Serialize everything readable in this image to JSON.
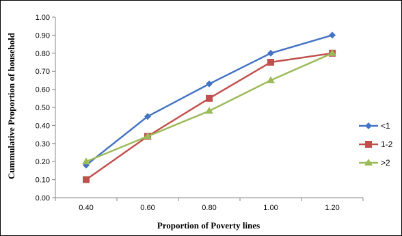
{
  "chart_data": {
    "type": "line",
    "title": "",
    "xlabel": "Proportion of Poverty lines",
    "ylabel": "Cummulative Proportion of household",
    "x": [
      0.4,
      0.6,
      0.8,
      1.0,
      1.2
    ],
    "x_tick_labels": [
      "0.40",
      "0.60",
      "0.80",
      "1.00",
      "1.20"
    ],
    "ylim": [
      0,
      1.0
    ],
    "y_tick_labels": [
      "0.00",
      "0.10",
      "0.20",
      "0.30",
      "0.40",
      "0.50",
      "0.60",
      "0.70",
      "0.80",
      "0.90",
      "1.00"
    ],
    "grid": false,
    "legend_position": "right",
    "series": [
      {
        "name": "<1",
        "values": [
          0.18,
          0.45,
          0.63,
          0.8,
          0.9
        ],
        "color": "#4472C4",
        "marker": "diamond"
      },
      {
        "name": "1-2",
        "values": [
          0.1,
          0.34,
          0.55,
          0.75,
          0.8
        ],
        "color": "#C0504D",
        "marker": "square"
      },
      {
        "name": ">2",
        "values": [
          0.2,
          0.34,
          0.48,
          0.65,
          0.8
        ],
        "color": "#9BBB59",
        "marker": "triangle"
      }
    ]
  }
}
